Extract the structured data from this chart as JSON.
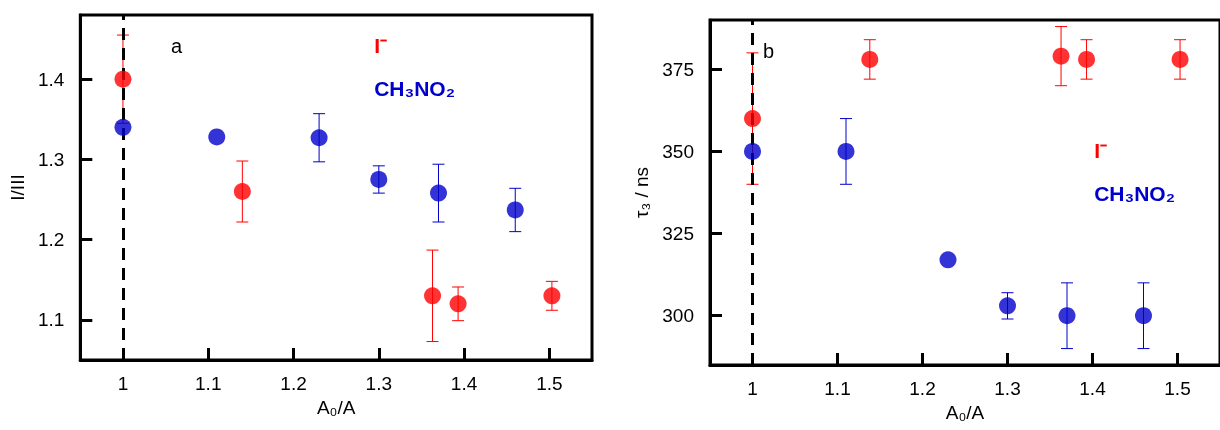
{
  "chart_data": [
    {
      "type": "scatter",
      "title": "a",
      "xlabel": "A₀/A",
      "ylabel": "I/III",
      "xlim": [
        0.95,
        1.55
      ],
      "xticks": [
        1,
        1.1,
        1.2,
        1.3,
        1.4,
        1.5
      ],
      "ylim": [
        1.05,
        1.48
      ],
      "yticks": [
        1.1,
        1.2,
        1.3,
        1.4
      ],
      "grid": false,
      "legend": "top right",
      "marker": "circle",
      "ref_lines": [
        {
          "axis": "x",
          "value": 1,
          "color": "#000000",
          "line_style": "dashed"
        }
      ],
      "series": [
        {
          "name": "I⁻",
          "color": "#ff0000",
          "x": [
            1,
            1.14,
            1.363,
            1.393,
            1.503
          ],
          "values": [
            1.4,
            1.26,
            1.13,
            1.12,
            1.13
          ],
          "errors": [
            0.055,
            0.038,
            0.057,
            0.021,
            0.018
          ]
        },
        {
          "name": "CH₃NO₂",
          "color": "#0000cc",
          "x": [
            1,
            1.11,
            1.23,
            1.3,
            1.37,
            1.46
          ],
          "values": [
            1.34,
            1.328,
            1.327,
            1.275,
            1.258,
            1.237
          ],
          "errors": [
            null,
            null,
            0.03,
            0.017,
            0.036,
            0.027
          ]
        }
      ]
    },
    {
      "type": "scatter",
      "title": "b",
      "xlabel": "A₀/A",
      "ylabel": "τ₃ / ns",
      "xlim": [
        0.95,
        1.55
      ],
      "xticks": [
        1,
        1.1,
        1.2,
        1.3,
        1.4,
        1.5
      ],
      "ylim": [
        285,
        390
      ],
      "yticks": [
        300,
        325,
        350,
        375
      ],
      "grid": false,
      "legend": "right",
      "marker": "circle",
      "ref_lines": [
        {
          "axis": "x",
          "value": 1,
          "color": "#000000",
          "line_style": "dashed"
        }
      ],
      "series": [
        {
          "name": "I⁻",
          "color": "#ff0000",
          "x": [
            1,
            1.138,
            1.363,
            1.393,
            1.503
          ],
          "values": [
            360,
            378,
            379,
            378,
            378
          ],
          "errors": [
            20,
            6,
            9,
            6,
            6
          ]
        },
        {
          "name": "CH₃NO₂",
          "color": "#0000cc",
          "x": [
            1,
            1.11,
            1.23,
            1.3,
            1.37,
            1.46
          ],
          "values": [
            350,
            350,
            317,
            303,
            300,
            300
          ],
          "errors": [
            null,
            10,
            null,
            4,
            10,
            10
          ]
        }
      ]
    }
  ]
}
